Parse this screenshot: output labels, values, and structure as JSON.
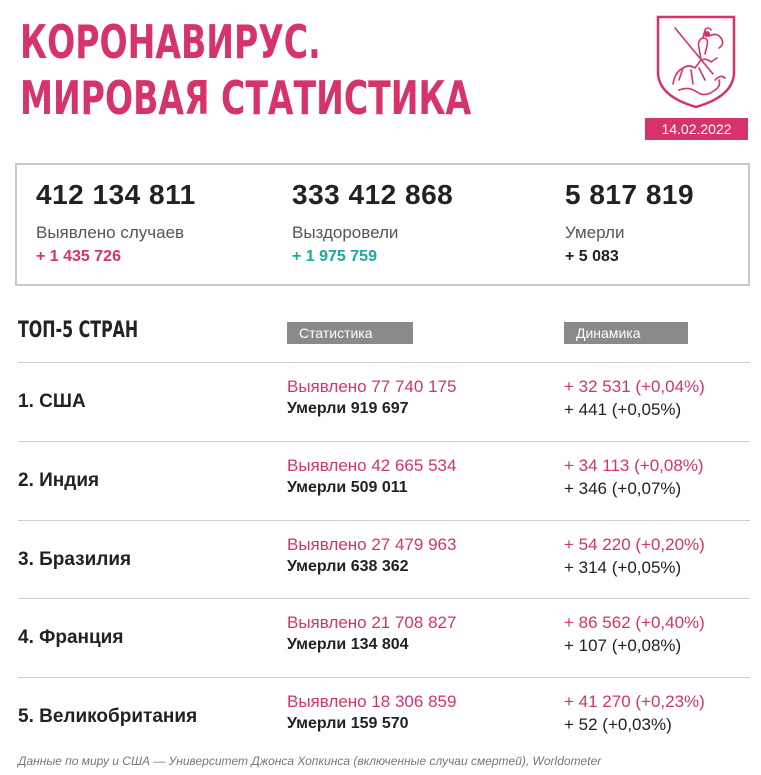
{
  "header": {
    "title_line1": "КОРОНАВИРУС.",
    "title_line2": "МИРОВАЯ СТАТИСТИКА",
    "date": "14.02.2022",
    "emblem_icon": "moscow-coat-of-arms"
  },
  "colors": {
    "accent": "#d6336c",
    "recovered": "#1aa99a"
  },
  "totals": [
    {
      "number": "412 134 811",
      "label": "Выявлено случаев",
      "delta": "+ 1 435 726"
    },
    {
      "number": "333 412 868",
      "label": "Выздоровели",
      "delta": "+ 1 975 759"
    },
    {
      "number": "5 817 819",
      "label": "Умерли",
      "delta": "+ 5 083"
    }
  ],
  "top": {
    "title": "ТОП-5 СТРАН",
    "col_stats": "Статистика",
    "col_dynamics": "Динамика",
    "rows": [
      {
        "country": "1. США",
        "cases": "Выявлено 77 740 175",
        "deaths": "Умерли 919 697",
        "cases_delta": "+ 32 531 (+0,04%)",
        "deaths_delta": "+ 441 (+0,05%)"
      },
      {
        "country": "2. Индия",
        "cases": "Выявлено 42 665 534",
        "deaths": "Умерли 509 011",
        "cases_delta": "+ 34 113 (+0,08%)",
        "deaths_delta": "+ 346 (+0,07%)"
      },
      {
        "country": "3. Бразилия",
        "cases": "Выявлено 27 479 963",
        "deaths": "Умерли 638 362",
        "cases_delta": "+ 54 220 (+0,20%)",
        "deaths_delta": "+ 314 (+0,05%)"
      },
      {
        "country": "4. Франция",
        "cases": "Выявлено 21 708 827",
        "deaths": "Умерли 134 804",
        "cases_delta": "+ 86 562 (+0,40%)",
        "deaths_delta": "+ 107 (+0,08%)"
      },
      {
        "country": "5. Великобритания",
        "cases": "Выявлено 18 306 859",
        "deaths": "Умерли 159 570",
        "cases_delta": "+ 41 270 (+0,23%)",
        "deaths_delta": "+ 52 (+0,03%)"
      }
    ]
  },
  "footnote": "Данные по миру и США — Университет Джонса Хопкинса (включенные случаи смертей), Worldometer"
}
